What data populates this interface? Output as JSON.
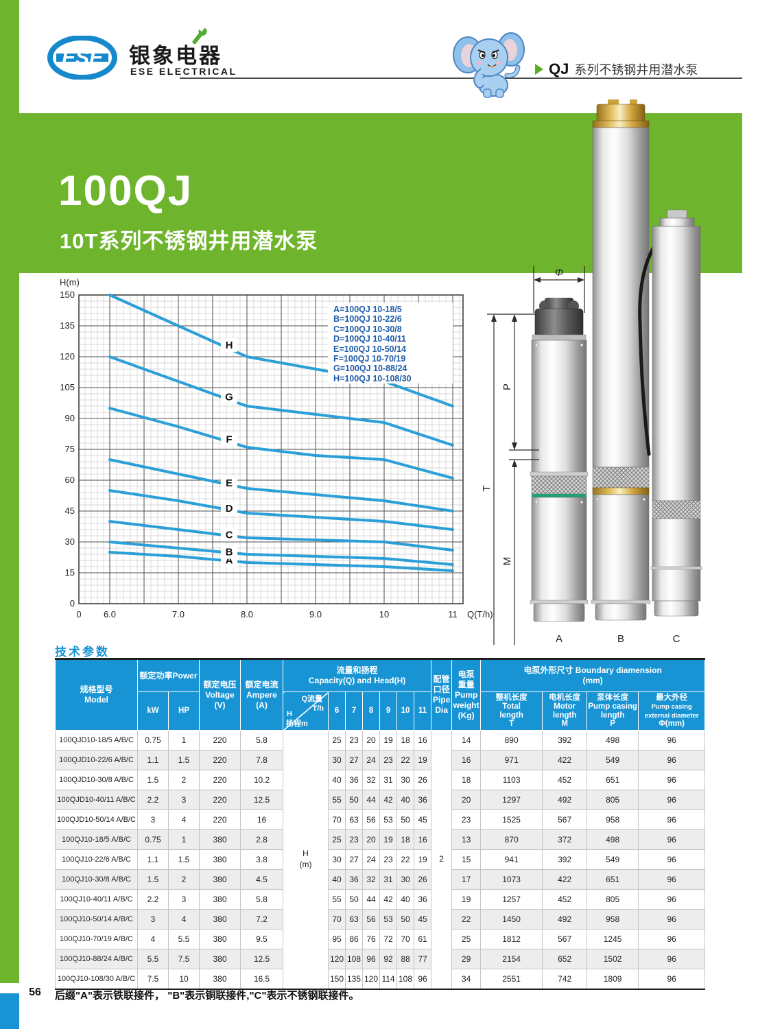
{
  "header": {
    "logo_abbr": "ESE",
    "logo_cn": "银象电器",
    "logo_en": "ESE ELECTRICAL",
    "series_prefix": "QJ",
    "series_title": "系列不锈钢井用潜水泵"
  },
  "banner": {
    "title": "100QJ",
    "subtitle": "10T系列不锈钢井用潜水泵"
  },
  "chart_data": {
    "type": "line",
    "ylabel": "H(m)",
    "xlabel": "Q(T/h)",
    "origin_label": "0",
    "x": [
      6,
      7,
      8,
      9,
      10,
      11
    ],
    "xtick_labels": [
      "6.0",
      "7.0",
      "8.0",
      "9.0",
      "10",
      "11"
    ],
    "yticks": [
      0,
      15,
      30,
      45,
      60,
      75,
      90,
      105,
      120,
      135,
      150
    ],
    "ylim": [
      0,
      150
    ],
    "grid": true,
    "legend_position": "top-right",
    "line_color": "#2b9fd8",
    "series": [
      {
        "name": "A",
        "model": "100QJ 10-18/5",
        "values": [
          25,
          23,
          20,
          19,
          18,
          16
        ]
      },
      {
        "name": "B",
        "model": "100QJ 10-22/6",
        "values": [
          30,
          27,
          24,
          23,
          22,
          19
        ]
      },
      {
        "name": "C",
        "model": "100QJ 10-30/8",
        "values": [
          40,
          36,
          32,
          31,
          30,
          26
        ]
      },
      {
        "name": "D",
        "model": "100QJ 10-40/11",
        "values": [
          55,
          50,
          44,
          42,
          40,
          36
        ]
      },
      {
        "name": "E",
        "model": "100QJ 10-50/14",
        "values": [
          70,
          63,
          56,
          53,
          50,
          45
        ]
      },
      {
        "name": "F",
        "model": "100QJ 10-70/19",
        "values": [
          95,
          86,
          76,
          72,
          70,
          61
        ]
      },
      {
        "name": "G",
        "model": "100QJ 10-88/24",
        "values": [
          120,
          108,
          96,
          92,
          88,
          77
        ]
      },
      {
        "name": "H",
        "model": "100QJ 10-108/30",
        "values": [
          150,
          135,
          120,
          114,
          108,
          96
        ]
      }
    ],
    "legend": [
      "A=100QJ 10-18/5",
      "B=100QJ 10-22/6",
      "C=100QJ 10-30/8",
      "D=100QJ 10-40/11",
      "E=100QJ 10-50/14",
      "F=100QJ 10-70/19",
      "G=100QJ 10-88/24",
      "H=100QJ 10-108/30"
    ]
  },
  "diagram": {
    "dim_phi": "Φ",
    "dim_p": "P",
    "dim_m": "M",
    "dim_t": "T",
    "pump_labels": [
      "A",
      "B",
      "C"
    ]
  },
  "table": {
    "title": "技术参数",
    "header": {
      "model_cn": "规格型号",
      "model_en": "Model",
      "power_cn_en": "额定功率Power",
      "power_kw": "kW",
      "power_hp": "HP",
      "voltage_cn": "额定电压",
      "voltage_en": "Voltage",
      "voltage_unit": "(V)",
      "ampere_cn": "额定电流",
      "ampere_en": "Ampere",
      "ampere_unit": "(A)",
      "capacity_cn": "流量和扬程",
      "capacity_en": "Capacity(Q) and Head(H)",
      "diag_q_cn": "Q流量",
      "diag_q_unit": "T/h",
      "diag_h": "H",
      "diag_h_cn": "扬程m",
      "flow_cols": [
        "6",
        "7",
        "8",
        "9",
        "10",
        "11"
      ],
      "pipe_cn1": "配管",
      "pipe_cn2": "口径",
      "pipe_en1": "Pipe",
      "pipe_en2": "Dia",
      "weight_cn1": "电泵",
      "weight_cn2": "重量",
      "weight_en1": "Pump",
      "weight_en2": "weight",
      "weight_unit": "(Kg)",
      "boundary_cn_en": "电泵外形尺寸 Boundary diamension",
      "boundary_unit": "(mm)",
      "total_cn": "整机长度",
      "total_en1": "Total",
      "total_en2": "length",
      "total_sym": "T",
      "motor_cn": "电机长度",
      "motor_en1": "Motor",
      "motor_en2": "length",
      "motor_sym": "M",
      "casing_cn": "泵体长度",
      "casing_en1": "Pump casing",
      "casing_en2": "length",
      "casing_sym": "P",
      "diameter_cn": "最大外径",
      "diameter_en1": "Pump casing",
      "diameter_en2": "external diameter",
      "diameter_sym": "Φ(mm)"
    },
    "merged": {
      "head_unit_line1": "H",
      "head_unit_line2": "(m)",
      "pipe_dia_value": "2"
    },
    "rows": [
      [
        "100QJD10-18/5 A/B/C",
        "0.75",
        "1",
        "220",
        "5.8",
        "25",
        "23",
        "20",
        "19",
        "18",
        "16",
        "14",
        "890",
        "392",
        "498",
        "96"
      ],
      [
        "100QJD10-22/6 A/B/C",
        "1.1",
        "1.5",
        "220",
        "7.8",
        "30",
        "27",
        "24",
        "23",
        "22",
        "19",
        "16",
        "971",
        "422",
        "549",
        "96"
      ],
      [
        "100QJD10-30/8 A/B/C",
        "1.5",
        "2",
        "220",
        "10.2",
        "40",
        "36",
        "32",
        "31",
        "30",
        "26",
        "18",
        "1103",
        "452",
        "651",
        "96"
      ],
      [
        "100QJD10-40/11 A/B/C",
        "2.2",
        "3",
        "220",
        "12.5",
        "55",
        "50",
        "44",
        "42",
        "40",
        "36",
        "20",
        "1297",
        "492",
        "805",
        "96"
      ],
      [
        "100QJD10-50/14 A/B/C",
        "3",
        "4",
        "220",
        "16",
        "70",
        "63",
        "56",
        "53",
        "50",
        "45",
        "23",
        "1525",
        "567",
        "958",
        "96"
      ],
      [
        "100QJ10-18/5 A/B/C",
        "0.75",
        "1",
        "380",
        "2.8",
        "25",
        "23",
        "20",
        "19",
        "18",
        "16",
        "13",
        "870",
        "372",
        "498",
        "96"
      ],
      [
        "100QJ10-22/6 A/B/C",
        "1.1",
        "1.5",
        "380",
        "3.8",
        "30",
        "27",
        "24",
        "23",
        "22",
        "19",
        "15",
        "941",
        "392",
        "549",
        "96"
      ],
      [
        "100QJ10-30/8 A/B/C",
        "1.5",
        "2",
        "380",
        "4.5",
        "40",
        "36",
        "32",
        "31",
        "30",
        "26",
        "17",
        "1073",
        "422",
        "651",
        "96"
      ],
      [
        "100QJ10-40/11 A/B/C",
        "2.2",
        "3",
        "380",
        "5.8",
        "55",
        "50",
        "44",
        "42",
        "40",
        "36",
        "19",
        "1257",
        "452",
        "805",
        "96"
      ],
      [
        "100QJ10-50/14 A/B/C",
        "3",
        "4",
        "380",
        "7.2",
        "70",
        "63",
        "56",
        "53",
        "50",
        "45",
        "22",
        "1450",
        "492",
        "958",
        "96"
      ],
      [
        "100QJ10-70/19 A/B/C",
        "4",
        "5.5",
        "380",
        "9.5",
        "95",
        "86",
        "76",
        "72",
        "70",
        "61",
        "25",
        "1812",
        "567",
        "1245",
        "96"
      ],
      [
        "100QJ10-88/24 A/B/C",
        "5.5",
        "7.5",
        "380",
        "12.5",
        "120",
        "108",
        "96",
        "92",
        "88",
        "77",
        "29",
        "2154",
        "652",
        "1502",
        "96"
      ],
      [
        "100QJ10-108/30 A/B/C",
        "7.5",
        "10",
        "380",
        "16.5",
        "150",
        "135",
        "120",
        "114",
        "108",
        "96",
        "34",
        "2551",
        "742",
        "1809",
        "96"
      ]
    ]
  },
  "footer": {
    "page_number": "56",
    "note": "后缀\"A\"表示铁联接件， \"B\"表示铜联接件,\"C\"表示不锈钢联接件。"
  },
  "colors": {
    "green": "#6fb42d",
    "table_blue": "#1894d4",
    "logo_blue": "#1689cd",
    "curve_blue": "#2b9fd8",
    "legend_blue": "#1e5ca9"
  }
}
